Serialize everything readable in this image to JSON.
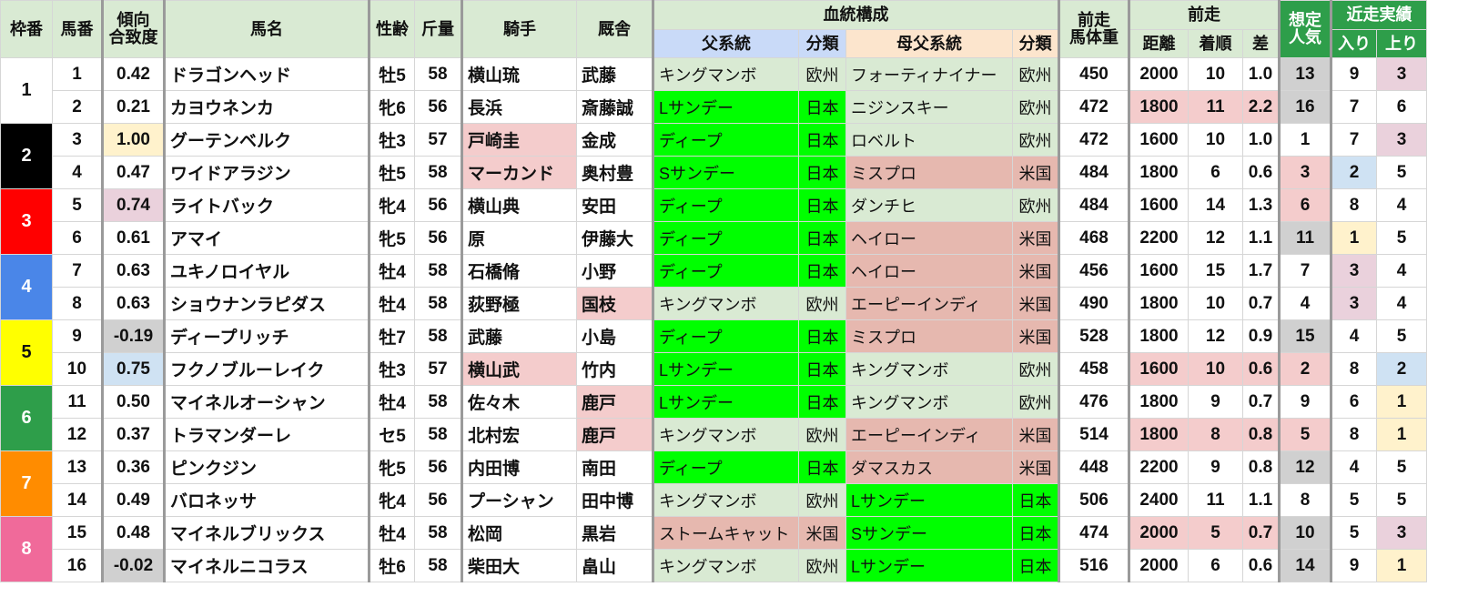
{
  "header": {
    "waku": "枠番",
    "umaban": "馬番",
    "keiko": "傾向\n合致度",
    "name": "馬名",
    "sexage": "性齢",
    "weight": "斤量",
    "jockey": "騎手",
    "stable": "厩舎",
    "bloodline": "血統構成",
    "sire": "父系統",
    "sire_cls": "分類",
    "dam_sire": "母父系統",
    "dam_sire_cls": "分類",
    "body_weight": "前走\n馬体重",
    "prev": "前走",
    "distance": "距離",
    "finish": "着順",
    "margin": "差",
    "popularity": "想定\n人気",
    "recent": "近走実績",
    "entry": "入り",
    "agari": "上り"
  },
  "colors": {
    "header": "#d9ead3",
    "header_dark": "#2e9e4a",
    "japan": "#00ff00",
    "europe": "#d9ead3",
    "usa": "#e6b8af",
    "pink": "#f4cccc",
    "grey": "#d0d0d0",
    "yellow": "#fff2cc",
    "purple": "#ead1dc",
    "lightblue": "#cfe2f3"
  },
  "frames": [
    {
      "label": "1",
      "bg": "#ffffff",
      "fg": "#111111"
    },
    {
      "label": "2",
      "bg": "#000000",
      "fg": "#ffffff"
    },
    {
      "label": "3",
      "bg": "#ff0000",
      "fg": "#ffffff"
    },
    {
      "label": "4",
      "bg": "#4a86e8",
      "fg": "#ffffff"
    },
    {
      "label": "5",
      "bg": "#ffff00",
      "fg": "#111111"
    },
    {
      "label": "6",
      "bg": "#2e9e4a",
      "fg": "#ffffff"
    },
    {
      "label": "7",
      "bg": "#ff8c00",
      "fg": "#ffffff"
    },
    {
      "label": "8",
      "bg": "#f06a9a",
      "fg": "#ffffff"
    }
  ],
  "rows": [
    {
      "umaban": "1",
      "keiko": "0.42",
      "name": "ドラゴンヘッド",
      "sexage": "牡5",
      "weight": "58",
      "jockey": "横山琉",
      "stable": "武藤",
      "sire": "キングマンボ",
      "sire_cls": "欧州",
      "dam_sire": "フォーティナイナー",
      "dam_sire_cls": "欧州",
      "body_weight": "450",
      "distance": "2000",
      "finish": "10",
      "margin": "1.0",
      "popularity": "13",
      "entry": "9",
      "agari": "3",
      "hl": {
        "popularity": "grey",
        "agari": "purple"
      }
    },
    {
      "umaban": "2",
      "keiko": "0.21",
      "name": "カヨウネンカ",
      "sexage": "牝6",
      "weight": "56",
      "jockey": "長浜",
      "stable": "斎藤誠",
      "sire": "Lサンデー",
      "sire_cls": "日本",
      "dam_sire": "ニジンスキー",
      "dam_sire_cls": "欧州",
      "body_weight": "472",
      "distance": "1800",
      "finish": "11",
      "margin": "2.2",
      "popularity": "16",
      "entry": "7",
      "agari": "6",
      "hl": {
        "prev": "pink",
        "popularity": "grey"
      }
    },
    {
      "umaban": "3",
      "keiko": "1.00",
      "name": "グーテンベルク",
      "sexage": "牡3",
      "weight": "57",
      "jockey": "戸崎圭",
      "stable": "金成",
      "sire": "ディープ",
      "sire_cls": "日本",
      "dam_sire": "ロベルト",
      "dam_sire_cls": "欧州",
      "body_weight": "472",
      "distance": "1600",
      "finish": "10",
      "margin": "1.0",
      "popularity": "1",
      "entry": "7",
      "agari": "3",
      "hl": {
        "keiko": "yellow",
        "jockey": "pink",
        "agari": "purple"
      }
    },
    {
      "umaban": "4",
      "keiko": "0.47",
      "name": "ワイドアラジン",
      "sexage": "牡5",
      "weight": "58",
      "jockey": "マーカンド",
      "stable": "奥村豊",
      "sire": "Sサンデー",
      "sire_cls": "日本",
      "dam_sire": "ミスプロ",
      "dam_sire_cls": "米国",
      "body_weight": "484",
      "distance": "1800",
      "finish": "6",
      "margin": "0.6",
      "popularity": "3",
      "entry": "2",
      "agari": "5",
      "hl": {
        "jockey": "pink",
        "popularity": "pink",
        "entry": "lightblue"
      }
    },
    {
      "umaban": "5",
      "keiko": "0.74",
      "name": "ライトバック",
      "sexage": "牝4",
      "weight": "56",
      "jockey": "横山典",
      "stable": "安田",
      "sire": "ディープ",
      "sire_cls": "日本",
      "dam_sire": "ダンチヒ",
      "dam_sire_cls": "欧州",
      "body_weight": "484",
      "distance": "1600",
      "finish": "14",
      "margin": "1.3",
      "popularity": "6",
      "entry": "8",
      "agari": "4",
      "hl": {
        "keiko": "purple",
        "popularity": "pink"
      }
    },
    {
      "umaban": "6",
      "keiko": "0.61",
      "name": "アマイ",
      "sexage": "牝5",
      "weight": "56",
      "jockey": "原",
      "stable": "伊藤大",
      "sire": "ディープ",
      "sire_cls": "日本",
      "dam_sire": "ヘイロー",
      "dam_sire_cls": "米国",
      "body_weight": "468",
      "distance": "2200",
      "finish": "12",
      "margin": "1.1",
      "popularity": "11",
      "entry": "1",
      "agari": "5",
      "hl": {
        "popularity": "grey",
        "entry": "yellow"
      }
    },
    {
      "umaban": "7",
      "keiko": "0.63",
      "name": "ユキノロイヤル",
      "sexage": "牡4",
      "weight": "58",
      "jockey": "石橋脩",
      "stable": "小野",
      "sire": "ディープ",
      "sire_cls": "日本",
      "dam_sire": "ヘイロー",
      "dam_sire_cls": "米国",
      "body_weight": "456",
      "distance": "1600",
      "finish": "15",
      "margin": "1.7",
      "popularity": "7",
      "entry": "3",
      "agari": "4",
      "hl": {
        "entry": "purple"
      }
    },
    {
      "umaban": "8",
      "keiko": "0.63",
      "name": "ショウナンラピダス",
      "sexage": "牡4",
      "weight": "58",
      "jockey": "荻野極",
      "stable": "国枝",
      "sire": "キングマンボ",
      "sire_cls": "欧州",
      "dam_sire": "エーピーインディ",
      "dam_sire_cls": "米国",
      "body_weight": "490",
      "distance": "1800",
      "finish": "10",
      "margin": "0.7",
      "popularity": "4",
      "entry": "3",
      "agari": "4",
      "hl": {
        "stable": "pink",
        "entry": "purple"
      }
    },
    {
      "umaban": "9",
      "keiko": "-0.19",
      "name": "ディープリッチ",
      "sexage": "牡7",
      "weight": "58",
      "jockey": "武藤",
      "stable": "小島",
      "sire": "ディープ",
      "sire_cls": "日本",
      "dam_sire": "ミスプロ",
      "dam_sire_cls": "米国",
      "body_weight": "528",
      "distance": "1800",
      "finish": "12",
      "margin": "0.9",
      "popularity": "15",
      "entry": "4",
      "agari": "5",
      "hl": {
        "keiko": "grey",
        "popularity": "grey"
      }
    },
    {
      "umaban": "10",
      "keiko": "0.75",
      "name": "フクノブルーレイク",
      "sexage": "牡3",
      "weight": "57",
      "jockey": "横山武",
      "stable": "竹内",
      "sire": "Lサンデー",
      "sire_cls": "日本",
      "dam_sire": "キングマンボ",
      "dam_sire_cls": "欧州",
      "body_weight": "458",
      "distance": "1600",
      "finish": "10",
      "margin": "0.6",
      "popularity": "2",
      "entry": "8",
      "agari": "2",
      "hl": {
        "keiko": "lightblue",
        "jockey": "pink",
        "prev": "pink",
        "popularity": "pink",
        "agari": "lightblue"
      }
    },
    {
      "umaban": "11",
      "keiko": "0.50",
      "name": "マイネルオーシャン",
      "sexage": "牡4",
      "weight": "58",
      "jockey": "佐々木",
      "stable": "鹿戸",
      "sire": "Lサンデー",
      "sire_cls": "日本",
      "dam_sire": "キングマンボ",
      "dam_sire_cls": "欧州",
      "body_weight": "476",
      "distance": "1800",
      "finish": "9",
      "margin": "0.7",
      "popularity": "9",
      "entry": "6",
      "agari": "1",
      "hl": {
        "stable": "pink",
        "agari": "yellow"
      }
    },
    {
      "umaban": "12",
      "keiko": "0.37",
      "name": "トラマンダーレ",
      "sexage": "セ5",
      "weight": "58",
      "jockey": "北村宏",
      "stable": "鹿戸",
      "sire": "キングマンボ",
      "sire_cls": "欧州",
      "dam_sire": "エーピーインディ",
      "dam_sire_cls": "米国",
      "body_weight": "514",
      "distance": "1800",
      "finish": "8",
      "margin": "0.8",
      "popularity": "5",
      "entry": "8",
      "agari": "1",
      "hl": {
        "stable": "pink",
        "prev": "pink",
        "popularity": "pink",
        "agari": "yellow"
      }
    },
    {
      "umaban": "13",
      "keiko": "0.36",
      "name": "ピンクジン",
      "sexage": "牝5",
      "weight": "56",
      "jockey": "内田博",
      "stable": "南田",
      "sire": "ディープ",
      "sire_cls": "日本",
      "dam_sire": "ダマスカス",
      "dam_sire_cls": "米国",
      "body_weight": "448",
      "distance": "2200",
      "finish": "9",
      "margin": "0.8",
      "popularity": "12",
      "entry": "4",
      "agari": "5",
      "hl": {
        "popularity": "grey"
      }
    },
    {
      "umaban": "14",
      "keiko": "0.49",
      "name": "バロネッサ",
      "sexage": "牝4",
      "weight": "56",
      "jockey": "プーシャン",
      "stable": "田中博",
      "sire": "キングマンボ",
      "sire_cls": "欧州",
      "dam_sire": "Lサンデー",
      "dam_sire_cls": "日本",
      "body_weight": "506",
      "distance": "2400",
      "finish": "11",
      "margin": "1.1",
      "popularity": "8",
      "entry": "5",
      "agari": "5",
      "hl": {}
    },
    {
      "umaban": "15",
      "keiko": "0.48",
      "name": "マイネルブリックス",
      "sexage": "牡4",
      "weight": "58",
      "jockey": "松岡",
      "stable": "黒岩",
      "sire": "ストームキャット",
      "sire_cls": "米国",
      "dam_sire": "Sサンデー",
      "dam_sire_cls": "日本",
      "body_weight": "474",
      "distance": "2000",
      "finish": "5",
      "margin": "0.7",
      "popularity": "10",
      "entry": "5",
      "agari": "3",
      "hl": {
        "prev": "pink",
        "popularity": "grey",
        "agari": "purple"
      }
    },
    {
      "umaban": "16",
      "keiko": "-0.02",
      "name": "マイネルニコラス",
      "sexage": "牡6",
      "weight": "58",
      "jockey": "柴田大",
      "stable": "畠山",
      "sire": "キングマンボ",
      "sire_cls": "欧州",
      "dam_sire": "Lサンデー",
      "dam_sire_cls": "日本",
      "body_weight": "516",
      "distance": "2000",
      "finish": "6",
      "margin": "0.6",
      "popularity": "14",
      "entry": "9",
      "agari": "1",
      "hl": {
        "keiko": "grey",
        "popularity": "grey",
        "agari": "yellow"
      }
    }
  ]
}
